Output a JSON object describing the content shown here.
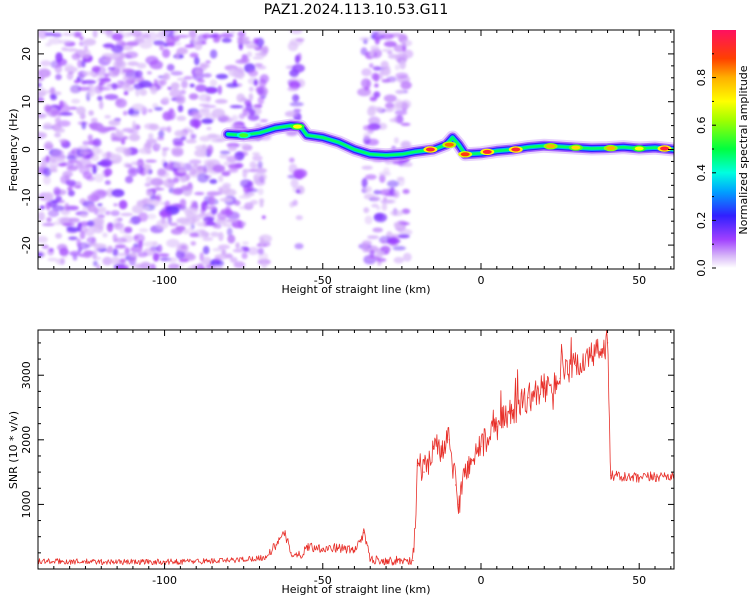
{
  "title": "PAZ1.2024.113.10.53.G11",
  "chart_data": [
    {
      "type": "heatmap",
      "name": "spectrogram",
      "xlabel": "Height of straight line (km)",
      "ylabel": "Frequency (Hz)",
      "xlim": [
        -140,
        61
      ],
      "ylim": [
        -25,
        25
      ],
      "xticks": [
        -100,
        -50,
        0,
        50
      ],
      "yticks": [
        -20,
        -10,
        0,
        10,
        20
      ],
      "colorbar": {
        "label": "Normalized spectral amplitude",
        "range": [
          0,
          1
        ],
        "ticks": [
          "0.0",
          "0.2",
          "0.4",
          "0.6",
          "0.8"
        ]
      },
      "noise_regions_km": [
        [
          -140,
          -68
        ],
        [
          -60,
          -57
        ],
        [
          -37,
          -23
        ]
      ],
      "ridge": [
        {
          "x": -80,
          "y": 3.2
        },
        {
          "x": -75,
          "y": 3.0
        },
        {
          "x": -70,
          "y": 3.5
        },
        {
          "x": -65,
          "y": 4.5
        },
        {
          "x": -60,
          "y": 5.0
        },
        {
          "x": -57,
          "y": 4.8
        },
        {
          "x": -55,
          "y": 3.0
        },
        {
          "x": -50,
          "y": 2.5
        },
        {
          "x": -45,
          "y": 1.5
        },
        {
          "x": -40,
          "y": 0.0
        },
        {
          "x": -35,
          "y": -1.0
        },
        {
          "x": -30,
          "y": -1.2
        },
        {
          "x": -25,
          "y": -1.0
        },
        {
          "x": -21,
          "y": -0.5
        },
        {
          "x": -15,
          "y": 0.0
        },
        {
          "x": -11,
          "y": 1.0
        },
        {
          "x": -9,
          "y": 2.5
        },
        {
          "x": -7,
          "y": 1.0
        },
        {
          "x": -5,
          "y": -1.0
        },
        {
          "x": 0,
          "y": -0.8
        },
        {
          "x": 5,
          "y": -0.3
        },
        {
          "x": 10,
          "y": 0.0
        },
        {
          "x": 15,
          "y": 0.5
        },
        {
          "x": 20,
          "y": 0.8
        },
        {
          "x": 25,
          "y": 0.6
        },
        {
          "x": 30,
          "y": 0.4
        },
        {
          "x": 35,
          "y": 0.2
        },
        {
          "x": 40,
          "y": 0.3
        },
        {
          "x": 45,
          "y": 0.5
        },
        {
          "x": 50,
          "y": 0.2
        },
        {
          "x": 55,
          "y": 0.4
        },
        {
          "x": 61,
          "y": 0.0
        }
      ],
      "hotspots": [
        {
          "x": -16,
          "y": 0.0,
          "v": 0.95
        },
        {
          "x": -10,
          "y": 1.0,
          "v": 0.85
        },
        {
          "x": -5,
          "y": -1.0,
          "v": 0.9
        },
        {
          "x": 2,
          "y": -0.5,
          "v": 0.95
        },
        {
          "x": 11,
          "y": 0.0,
          "v": 0.95
        },
        {
          "x": 22,
          "y": 0.7,
          "v": 0.8
        },
        {
          "x": 30,
          "y": 0.4,
          "v": 0.75
        },
        {
          "x": 41,
          "y": 0.3,
          "v": 0.8
        },
        {
          "x": 50,
          "y": 0.2,
          "v": 0.7
        },
        {
          "x": 58,
          "y": 0.2,
          "v": 0.95
        },
        {
          "x": -58,
          "y": 4.8,
          "v": 0.7
        },
        {
          "x": -75,
          "y": 3.0,
          "v": 0.55
        }
      ]
    },
    {
      "type": "line",
      "name": "snr",
      "xlabel": "Height of straight line (km)",
      "ylabel": "SNR (10 * v/v)",
      "xlim": [
        -140,
        61
      ],
      "ylim": [
        0,
        3700
      ],
      "xticks": [
        -100,
        -50,
        0,
        50
      ],
      "yticks": [
        1000,
        2000,
        3000
      ],
      "color": "#e8302a",
      "x": [
        -140,
        -120,
        -100,
        -80,
        -68,
        -62,
        -60,
        -57,
        -55,
        -50,
        -45,
        -40,
        -37,
        -35,
        -30,
        -25,
        -21.5,
        -20,
        -18,
        -15,
        -12,
        -10,
        -8,
        -7,
        -5,
        -3,
        0,
        5,
        10,
        15,
        20,
        25,
        30,
        35,
        38,
        40,
        41,
        45,
        50,
        55,
        61
      ],
      "y": [
        120,
        110,
        110,
        130,
        180,
        550,
        250,
        200,
        350,
        320,
        330,
        280,
        560,
        150,
        130,
        130,
        130,
        1600,
        1500,
        1900,
        1800,
        2000,
        1300,
        1000,
        1500,
        1700,
        1900,
        2200,
        2450,
        2650,
        2800,
        2950,
        3150,
        3300,
        3400,
        3500,
        1450,
        1420,
        1400,
        1430,
        1450
      ]
    }
  ]
}
